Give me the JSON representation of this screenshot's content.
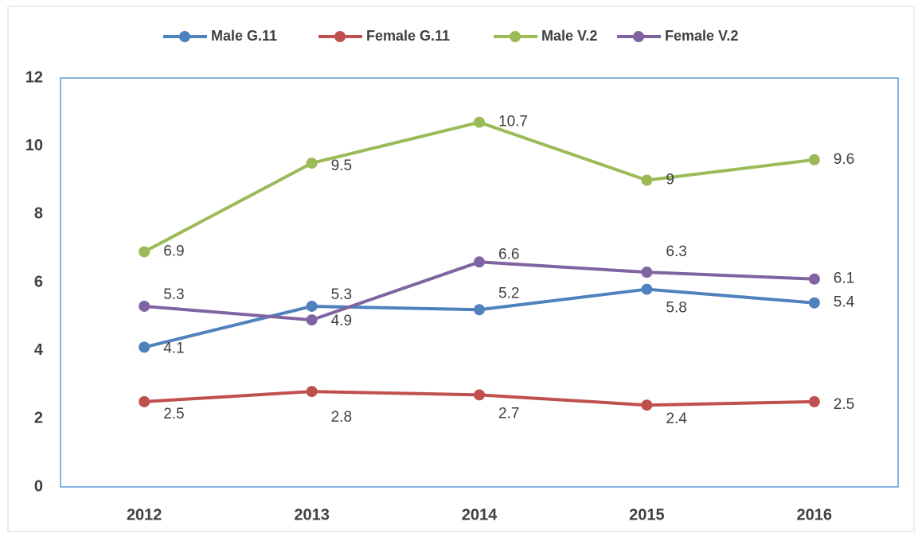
{
  "chart_data": {
    "type": "line",
    "categories": [
      "2012",
      "2013",
      "2014",
      "2015",
      "2016"
    ],
    "series": [
      {
        "name": "Male G.11",
        "color": "#4f81bd",
        "values": [
          4.1,
          5.3,
          5.2,
          5.8,
          5.4
        ]
      },
      {
        "name": "Female G.11",
        "color": "#c0504d",
        "values": [
          2.5,
          2.8,
          2.7,
          2.4,
          2.5
        ]
      },
      {
        "name": "Male V.2",
        "color": "#9bbb59",
        "values": [
          6.9,
          9.5,
          10.7,
          9,
          9.6
        ]
      },
      {
        "name": "Female V.2",
        "color": "#8064a2",
        "values": [
          5.3,
          4.9,
          6.6,
          6.3,
          6.1
        ]
      }
    ],
    "ylim": [
      0,
      12
    ],
    "yticks": [
      0,
      2,
      4,
      6,
      8,
      10,
      12
    ],
    "legend": "top",
    "grid": false
  }
}
